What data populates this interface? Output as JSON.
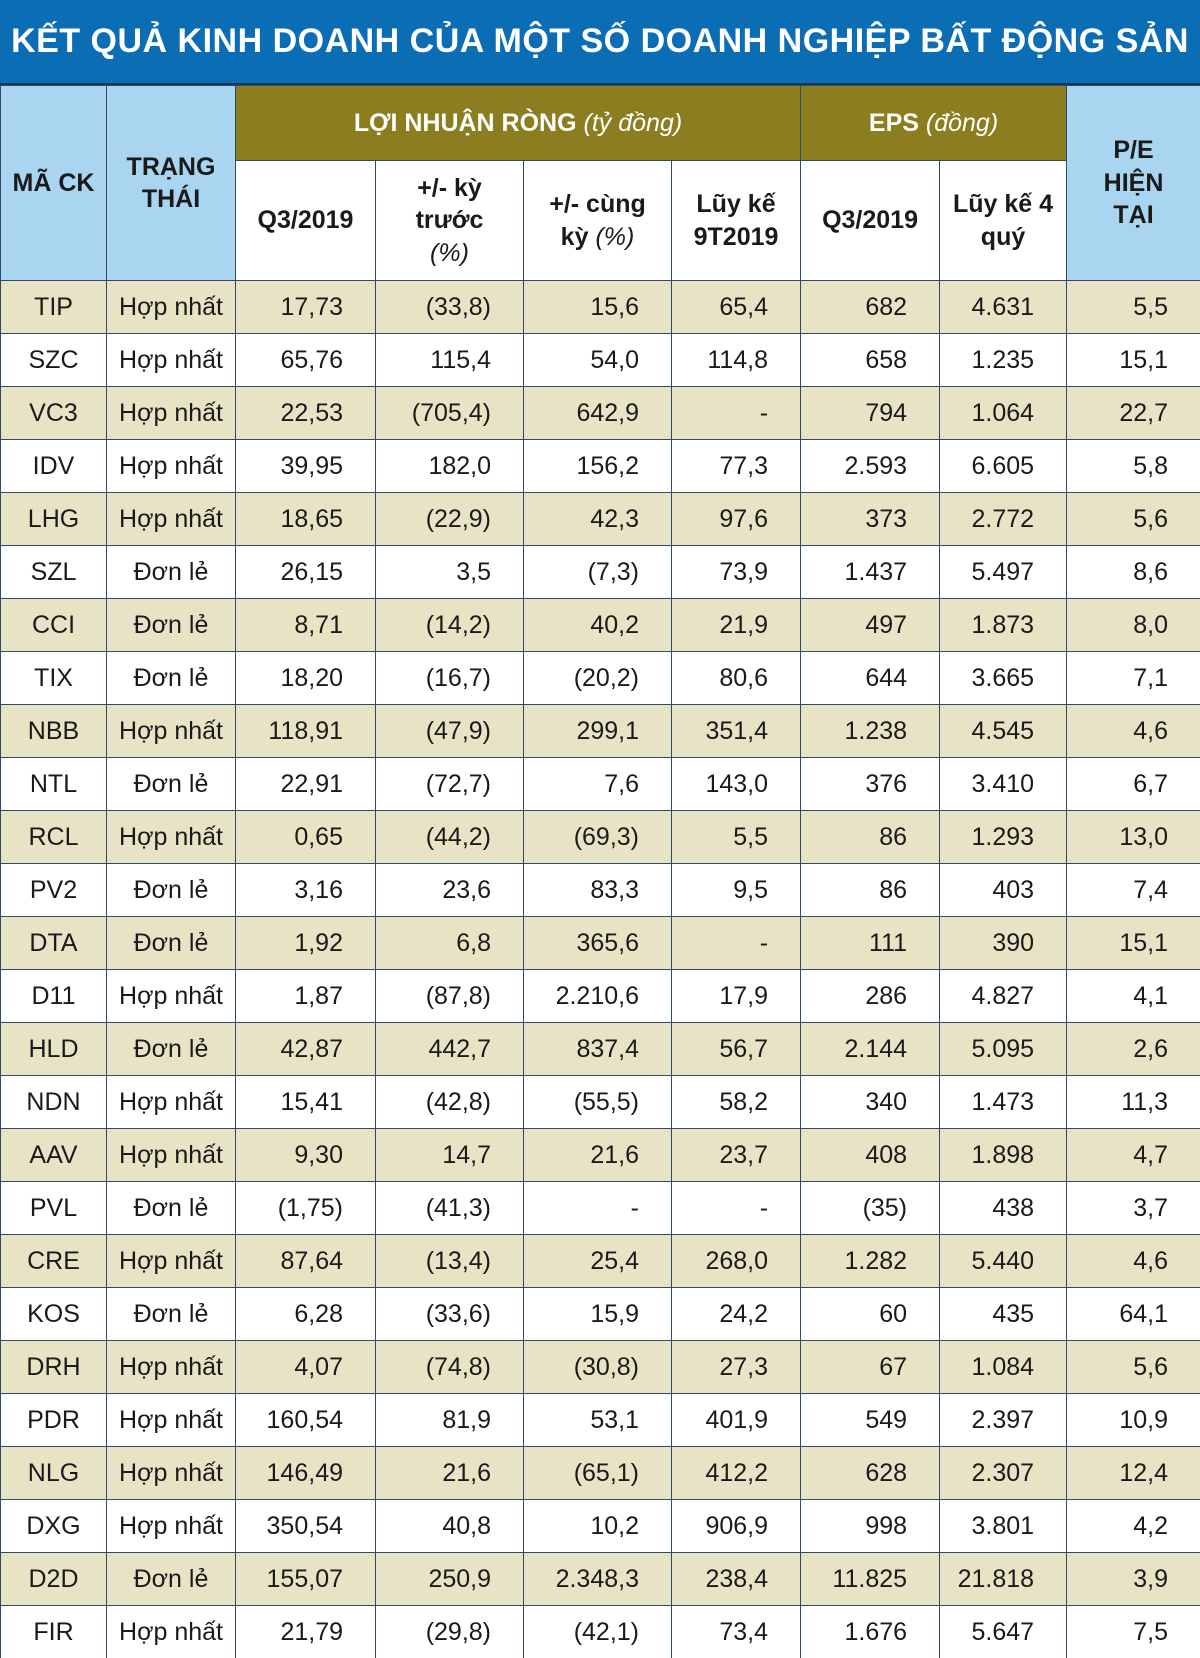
{
  "title": "KẾT QUẢ KINH DOANH CỦA MỘT SỐ DOANH NGHIỆP BẤT ĐỘNG SẢN",
  "header": {
    "code": "MÃ CK",
    "status": "TRẠNG THÁI",
    "profit": {
      "label": "LỢI NHUẬN RÒNG",
      "unit": "(tỷ đồng)"
    },
    "eps": {
      "label": "EPS",
      "unit": "(đồng)"
    },
    "pe": "P/E HIỆN TẠI",
    "profit_cols": [
      {
        "label": "Q3/2019"
      },
      {
        "label": "+/- kỳ trước",
        "unit": "(%)"
      },
      {
        "label": "+/- cùng kỳ",
        "unit": "(%)"
      },
      {
        "label": "Lũy kế 9T2019"
      }
    ],
    "eps_cols": [
      {
        "label": "Q3/2019"
      },
      {
        "label": "Lũy kế 4 quý"
      }
    ]
  },
  "rows": [
    [
      "TIP",
      "Hợp nhất",
      "17,73",
      "(33,8)",
      "15,6",
      "65,4",
      "682",
      "4.631",
      "5,5"
    ],
    [
      "SZC",
      "Hợp nhất",
      "65,76",
      "115,4",
      "54,0",
      "114,8",
      "658",
      "1.235",
      "15,1"
    ],
    [
      "VC3",
      "Hợp nhất",
      "22,53",
      "(705,4)",
      "642,9",
      "-",
      "794",
      "1.064",
      "22,7"
    ],
    [
      "IDV",
      "Hợp nhất",
      "39,95",
      "182,0",
      "156,2",
      "77,3",
      "2.593",
      "6.605",
      "5,8"
    ],
    [
      "LHG",
      "Hợp nhất",
      "18,65",
      "(22,9)",
      "42,3",
      "97,6",
      "373",
      "2.772",
      "5,6"
    ],
    [
      "SZL",
      "Đơn lẻ",
      "26,15",
      "3,5",
      "(7,3)",
      "73,9",
      "1.437",
      "5.497",
      "8,6"
    ],
    [
      "CCI",
      "Đơn lẻ",
      "8,71",
      "(14,2)",
      "40,2",
      "21,9",
      "497",
      "1.873",
      "8,0"
    ],
    [
      "TIX",
      "Đơn lẻ",
      "18,20",
      "(16,7)",
      "(20,2)",
      "80,6",
      "644",
      "3.665",
      "7,1"
    ],
    [
      "NBB",
      "Hợp nhất",
      "118,91",
      "(47,9)",
      "299,1",
      "351,4",
      "1.238",
      "4.545",
      "4,6"
    ],
    [
      "NTL",
      "Đơn lẻ",
      "22,91",
      "(72,7)",
      "7,6",
      "143,0",
      "376",
      "3.410",
      "6,7"
    ],
    [
      "RCL",
      "Hợp nhất",
      "0,65",
      "(44,2)",
      "(69,3)",
      "5,5",
      "86",
      "1.293",
      "13,0"
    ],
    [
      "PV2",
      "Đơn lẻ",
      "3,16",
      "23,6",
      "83,3",
      "9,5",
      "86",
      "403",
      "7,4"
    ],
    [
      "DTA",
      "Đơn lẻ",
      "1,92",
      "6,8",
      "365,6",
      "-",
      "111",
      "390",
      "15,1"
    ],
    [
      "D11",
      "Hợp nhất",
      "1,87",
      "(87,8)",
      "2.210,6",
      "17,9",
      "286",
      "4.827",
      "4,1"
    ],
    [
      "HLD",
      "Đơn lẻ",
      "42,87",
      "442,7",
      "837,4",
      "56,7",
      "2.144",
      "5.095",
      "2,6"
    ],
    [
      "NDN",
      "Hợp nhất",
      "15,41",
      "(42,8)",
      "(55,5)",
      "58,2",
      "340",
      "1.473",
      "11,3"
    ],
    [
      "AAV",
      "Hợp nhất",
      "9,30",
      "14,7",
      "21,6",
      "23,7",
      "408",
      "1.898",
      "4,7"
    ],
    [
      "PVL",
      "Đơn lẻ",
      "(1,75)",
      "(41,3)",
      "-",
      "-",
      "(35)",
      "438",
      "3,7"
    ],
    [
      "CRE",
      "Hợp nhất",
      "87,64",
      "(13,4)",
      "25,4",
      "268,0",
      "1.282",
      "5.440",
      "4,6"
    ],
    [
      "KOS",
      "Đơn lẻ",
      "6,28",
      "(33,6)",
      "15,9",
      "24,2",
      "60",
      "435",
      "64,1"
    ],
    [
      "DRH",
      "Hợp nhất",
      "4,07",
      "(74,8)",
      "(30,8)",
      "27,3",
      "67",
      "1.084",
      "5,6"
    ],
    [
      "PDR",
      "Hợp nhất",
      "160,54",
      "81,9",
      "53,1",
      "401,9",
      "549",
      "2.397",
      "10,9"
    ],
    [
      "NLG",
      "Hợp nhất",
      "146,49",
      "21,6",
      "(65,1)",
      "412,2",
      "628",
      "2.307",
      "12,4"
    ],
    [
      "DXG",
      "Hợp nhất",
      "350,54",
      "40,8",
      "10,2",
      "906,9",
      "998",
      "3.801",
      "4,2"
    ],
    [
      "D2D",
      "Đơn lẻ",
      "155,07",
      "250,9",
      "2.348,3",
      "238,4",
      "11.825",
      "21.818",
      "3,9"
    ],
    [
      "FIR",
      "Hợp nhất",
      "21,79",
      "(29,8)",
      "(42,1)",
      "73,4",
      "1.676",
      "5.647",
      "7,5"
    ]
  ]
}
